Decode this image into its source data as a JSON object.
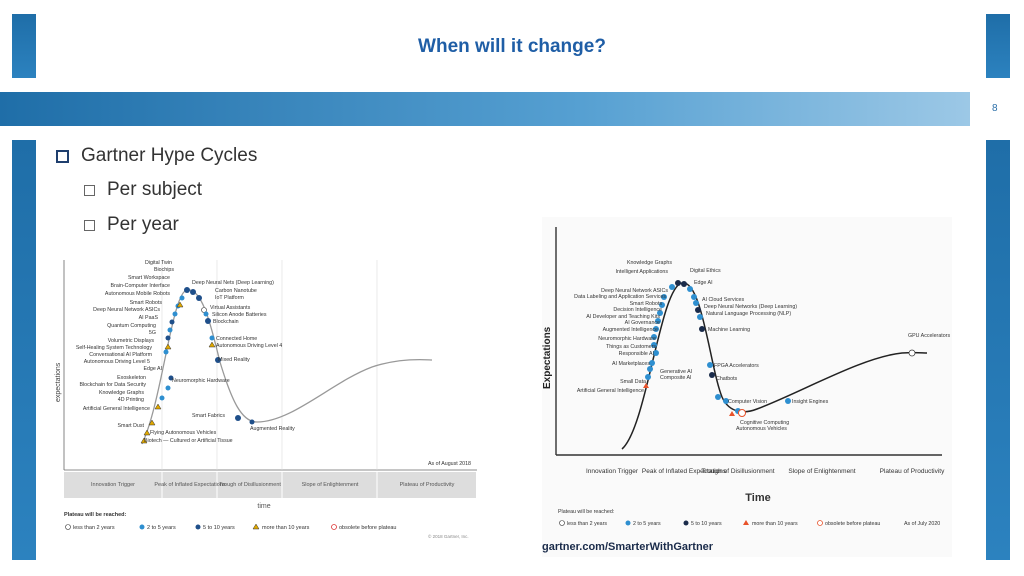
{
  "slide": {
    "title": "When will it change?",
    "page_number": "8",
    "bullets": {
      "main": "Gartner Hype Cycles",
      "sub1": "Per subject",
      "sub2": "Per year"
    }
  },
  "colors": {
    "brand": "#1f6ea8",
    "title": "#1f5ea6"
  },
  "chart_left": {
    "ylabel": "expectations",
    "xlabel": "time",
    "as_of": "As of August 2018",
    "copyright": "© 2018 Gartner, Inc.",
    "phases": [
      "Innovation Trigger",
      "Peak of Inflated Expectations",
      "Trough of Disillusionment",
      "Slope of Enlightenment",
      "Plateau of Productivity"
    ],
    "legend_title": "Plateau will be reached:",
    "legend": [
      "less than 2 years",
      "2 to 5 years",
      "5 to 10 years",
      "more than 10 years",
      "obsolete before plateau"
    ],
    "labels_left": [
      "Digital Twin",
      "Biochips",
      "Smart Workspace",
      "Brain-Computer Interface",
      "Autonomous Mobile Robots",
      "Smart Robots",
      "Deep Neural Network ASICs",
      "AI PaaS",
      "Quantum Computing",
      "5G",
      "Volumetric Displays",
      "Self-Healing System Technology",
      "Conversational AI Platform",
      "Autonomous Driving Level 5",
      "Edge AI",
      "Exoskeleton",
      "Blockchain for Data Security",
      "Knowledge Graphs",
      "4D Printing",
      "Artificial General Intelligence",
      "Smart Dust",
      "Flying Autonomous Vehicles",
      "Biotech — Cultured or Artificial Tissue"
    ],
    "labels_right": [
      "Deep Neural Nets (Deep Learning)",
      "Carbon Nanotube",
      "IoT Platform",
      "Virtual Assistants",
      "Silicon Anode Batteries",
      "Blockchain",
      "Connected Home",
      "Autonomous Driving Level 4",
      "Mixed Reality",
      "Neuromorphic Hardware",
      "Smart Fabrics",
      "Augmented Reality"
    ]
  },
  "chart_right": {
    "ylabel": "Expectations",
    "xlabel": "Time",
    "as_of": "As of July 2020",
    "footer": "gartner.com/SmarterWithGartner",
    "phases": [
      "Innovation Trigger",
      "Peak of Inflated Expectations",
      "Trough of Disillusionment",
      "Slope of Enlightenment",
      "Plateau of Productivity"
    ],
    "legend_title": "Plateau will be reached:",
    "legend": [
      "less than 2 years",
      "2 to 5 years",
      "5 to 10 years",
      "more than 10 years",
      "obsolete before plateau"
    ],
    "labels_left": [
      "Knowledge Graphs",
      "Intelligent Applications",
      "Deep Neural Network ASICs",
      "Data Labeling and Application Services",
      "Smart Robots",
      "Decision Intelligence",
      "AI Developer and Teaching Kits",
      "AI Governance",
      "Augmented Intelligence",
      "Neuromorphic Hardware",
      "Things as Customers",
      "Responsible AI",
      "AI Marketplaces",
      "Small Data",
      "Artificial General Intelligence"
    ],
    "labels_right": [
      "Digital Ethics",
      "Edge AI",
      "AI Cloud Services",
      "Deep Neural Networks (Deep Learning)",
      "Natural Language Processing (NLP)",
      "Machine Learning",
      "Generative AI",
      "Composite AI",
      "FPGA Accelerators",
      "Chatbots",
      "Computer Vision",
      "Insight Engines",
      "Cognitive Computing",
      "Autonomous Vehicles",
      "GPU Accelerators"
    ]
  }
}
